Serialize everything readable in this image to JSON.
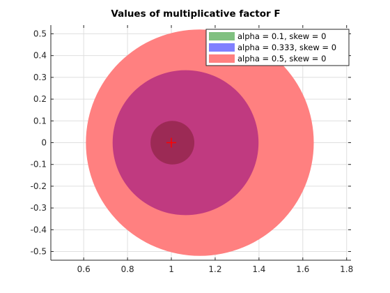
{
  "chart_data": {
    "type": "scatter",
    "title": "Values of multiplicative factor F",
    "xlabel": "",
    "ylabel": "",
    "xlim": [
      0.45,
      1.82
    ],
    "ylim": [
      -0.54,
      0.54
    ],
    "xticks": [
      0.6,
      0.8,
      1,
      1.2,
      1.4,
      1.6,
      1.8
    ],
    "xtick_labels": [
      "0.6",
      "0.8",
      "1",
      "1.2",
      "1.4",
      "1.6",
      "1.8"
    ],
    "yticks": [
      -0.5,
      -0.4,
      -0.3,
      -0.2,
      -0.1,
      0,
      0.1,
      0.2,
      0.3,
      0.4,
      0.5
    ],
    "ytick_labels": [
      "-0.5",
      "-0.4",
      "-0.3",
      "-0.2",
      "-0.1",
      "0",
      "0.1",
      "0.2",
      "0.3",
      "0.4",
      "0.5"
    ],
    "grid": true,
    "legend_position": "top-right",
    "series": [
      {
        "name": "alpha = 0.1, skew = 0",
        "color": "#00ff00",
        "legend_color": "#80c080",
        "opacity": 0.5,
        "x_range": [
          1.0,
          1.1
        ],
        "y_range": [
          -0.1,
          0.1
        ]
      },
      {
        "name": "alpha = 0.333, skew = 0",
        "color": "#0000ff",
        "legend_color": "#8080ff",
        "opacity": 0.5,
        "x_range": [
          1.0,
          1.39
        ],
        "y_range": [
          -0.333,
          0.333
        ]
      },
      {
        "name": "alpha = 0.5, skew = 0",
        "color": "#ff0000",
        "legend_color": "#ff8080",
        "opacity": 0.5,
        "x_range": [
          1.0,
          1.7
        ],
        "y_range": [
          -0.5,
          0.5
        ]
      }
    ],
    "regions": [
      {
        "series": 2,
        "color": "#ff8080",
        "cx": 1.13,
        "cy": 0,
        "r": 0.52
      },
      {
        "series": 1,
        "color": "#c03a80",
        "cx": 1.065,
        "cy": 0,
        "r": 0.333
      },
      {
        "series": 0,
        "color": "#9c2a55",
        "cx": 1.005,
        "cy": 0,
        "r": 0.1
      }
    ],
    "marker": {
      "x": 1,
      "y": 0,
      "symbol": "+",
      "color": "#ff0000"
    }
  }
}
